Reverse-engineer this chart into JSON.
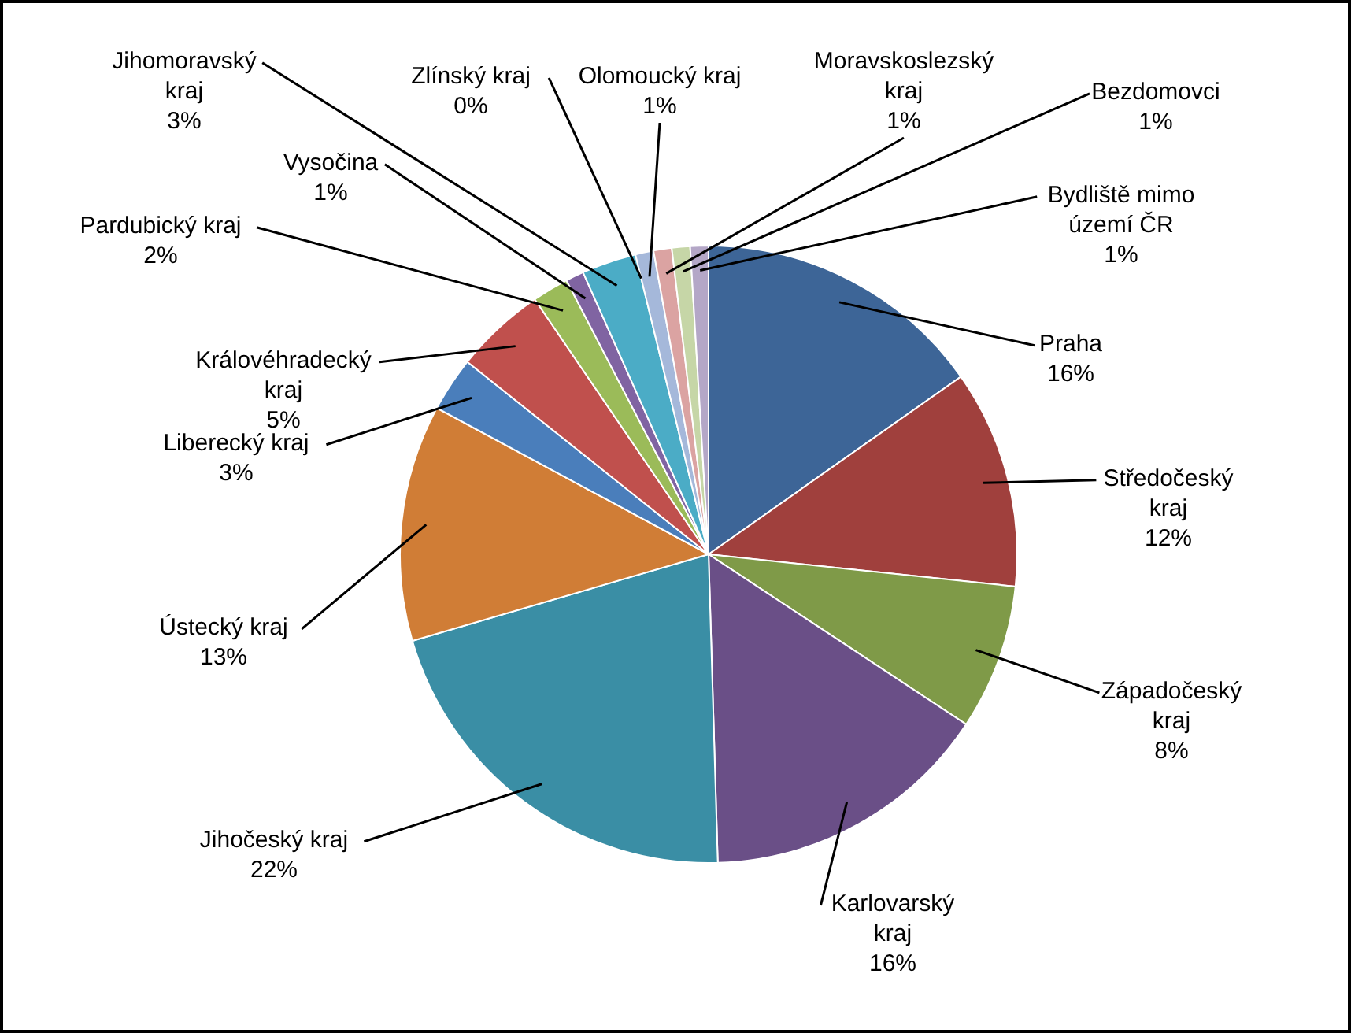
{
  "chart_data": {
    "type": "pie",
    "categories": [
      "Praha",
      "Středočeský kraj",
      "Západočeský kraj",
      "Karlovarský kraj",
      "Jihočeský kraj",
      "Ústecký kraj",
      "Liberecký kraj",
      "Královéhradecký kraj",
      "Pardubický kraj",
      "Vysočina",
      "Jihomoravský kraj",
      "Zlínský kraj",
      "Olomoucký kraj",
      "Moravskoslezský kraj",
      "Bezdomovci",
      "Bydliště mimo území ČR"
    ],
    "values": [
      16,
      12,
      8,
      16,
      22,
      13,
      3,
      5,
      2,
      1,
      3,
      0,
      1,
      1,
      1,
      1
    ],
    "value_labels": [
      "16%",
      "12%",
      "8%",
      "16%",
      "22%",
      "13%",
      "3%",
      "5%",
      "2%",
      "1%",
      "3%",
      "0%",
      "1%",
      "1%",
      "1%",
      "1%"
    ],
    "colors": [
      "#3d6597",
      "#a0403d",
      "#7f9a48",
      "#6a4f87",
      "#3a8ea5",
      "#d07d36",
      "#4a7ebb",
      "#c0504d",
      "#9bbb59",
      "#8064a2",
      "#4bacc6",
      "#f79646",
      "#a5b8da",
      "#dba3a2",
      "#c6d6a7",
      "#b4a7c7"
    ],
    "legend": false
  }
}
